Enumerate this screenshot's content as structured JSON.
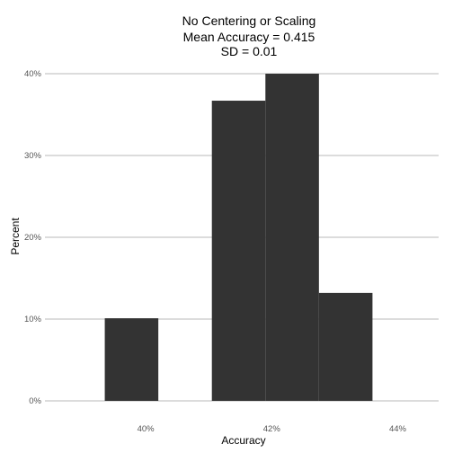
{
  "chart_data": {
    "type": "bar",
    "title_lines": [
      "No Centering or Scaling",
      "Mean Accuracy = 0.415",
      "SD = 0.01"
    ],
    "xlabel": "Accuracy",
    "ylabel": "Percent",
    "x_ticks": [
      0.4,
      0.42,
      0.44
    ],
    "x_tick_labels": [
      "40%",
      "42%",
      "44%"
    ],
    "y_ticks": [
      0,
      10,
      20,
      30,
      40
    ],
    "y_tick_labels": [
      "0%",
      "10%",
      "20%",
      "30%",
      "40%"
    ],
    "xlim": [
      0.384,
      0.4465
    ],
    "ylim": [
      0,
      40
    ],
    "bin_width": 0.0085,
    "bars": [
      {
        "x_start": 0.3935,
        "x_end": 0.402,
        "value": 10.1
      },
      {
        "x_start": 0.4105,
        "x_end": 0.419,
        "value": 36.7
      },
      {
        "x_start": 0.419,
        "x_end": 0.4275,
        "value": 40.0
      },
      {
        "x_start": 0.4275,
        "x_end": 0.436,
        "value": 13.2
      }
    ],
    "bar_color": "#333333",
    "grid": "horizontal",
    "legend": "none"
  }
}
